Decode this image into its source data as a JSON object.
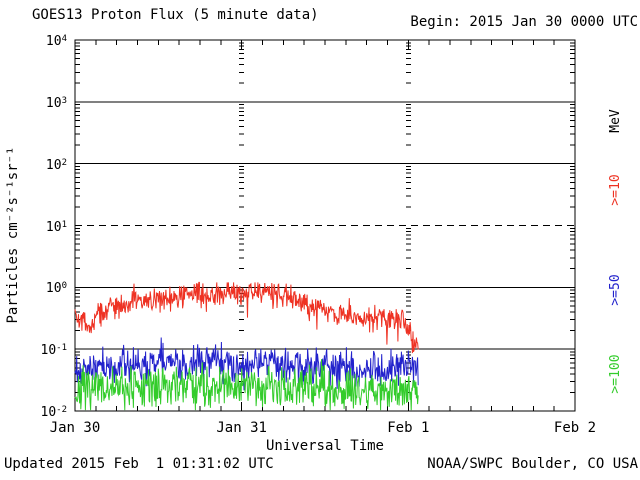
{
  "header": {
    "title": "GOES13 Proton Flux (5 minute data)",
    "begin": "Begin: 2015 Jan 30 0000 UTC"
  },
  "footer": {
    "updated": "Updated 2015 Feb  1 01:31:02 UTC",
    "source": "NOAA/SWPC Boulder, CO USA"
  },
  "right_axis": {
    "unit": "MeV"
  },
  "colors": {
    "axis": "#000000",
    "background": "#ffffff",
    "series_10mev": "#ee3223",
    "series_50mev": "#2222cc",
    "series_100mev": "#33cc2b"
  },
  "chart_data": {
    "type": "line",
    "title": "GOES13 Proton Flux (5 minute data)",
    "xlabel": "Universal Time",
    "ylabel": "Particles cm⁻²s⁻¹sr⁻¹",
    "x_categories": [
      "Jan 30",
      "Jan 31",
      "Feb 1",
      "Feb 2"
    ],
    "x_range_hours": [
      0,
      72
    ],
    "ylog_range_exp": [
      -2,
      4
    ],
    "yticks_exp": [
      4,
      3,
      2,
      1,
      0,
      -1,
      -2
    ],
    "solid_gridlines_exp": [
      3,
      2,
      0,
      -1
    ],
    "dashed_gridline_exp": 1,
    "day_boundary_hours": [
      24,
      48
    ],
    "xtick_step_hours": 3,
    "legend_position": "right",
    "series": [
      {
        "name": ">=10",
        "color": "#ee3223",
        "end_hour": 49.4,
        "jitter_decades": 0.1,
        "spike_prob": 0.02,
        "spike_depth": 0.35,
        "max_log": 0.08,
        "seed": 42,
        "hourly_values": [
          0.35,
          0.3,
          0.22,
          0.33,
          0.4,
          0.45,
          0.5,
          0.48,
          0.55,
          0.6,
          0.55,
          0.62,
          0.65,
          0.7,
          0.62,
          0.68,
          0.72,
          0.78,
          0.8,
          0.72,
          0.78,
          0.82,
          0.85,
          0.8,
          0.85,
          0.82,
          0.88,
          0.85,
          0.8,
          0.76,
          0.8,
          0.72,
          0.62,
          0.55,
          0.5,
          0.46,
          0.42,
          0.38,
          0.36,
          0.4,
          0.35,
          0.31,
          0.34,
          0.3,
          0.32,
          0.3,
          0.28,
          0.3,
          0.2,
          0.11
        ]
      },
      {
        "name": ">=50",
        "color": "#2222cc",
        "end_hour": 49.4,
        "jitter_decades": 0.14,
        "spike_prob": 0.008,
        "spike_depth": 0.2,
        "max_log": -0.65,
        "seed": 1337,
        "hourly_values": [
          0.045,
          0.05,
          0.048,
          0.052,
          0.05,
          0.055,
          0.05,
          0.06,
          0.055,
          0.05,
          0.06,
          0.055,
          0.06,
          0.065,
          0.06,
          0.055,
          0.06,
          0.065,
          0.07,
          0.06,
          0.065,
          0.07,
          0.065,
          0.06,
          0.065,
          0.06,
          0.07,
          0.065,
          0.06,
          0.065,
          0.06,
          0.055,
          0.06,
          0.055,
          0.05,
          0.055,
          0.05,
          0.055,
          0.05,
          0.055,
          0.05,
          0.048,
          0.05,
          0.052,
          0.05,
          0.048,
          0.05,
          0.055,
          0.06,
          0.055
        ]
      },
      {
        "name": ">=100",
        "color": "#33cc2b",
        "end_hour": 49.4,
        "jitter_decades": 0.17,
        "spike_prob": 0.008,
        "spike_depth": 0.2,
        "max_log": -1.0,
        "seed": 7,
        "hourly_values": [
          0.02,
          0.022,
          0.021,
          0.023,
          0.022,
          0.024,
          0.022,
          0.025,
          0.023,
          0.022,
          0.025,
          0.024,
          0.026,
          0.025,
          0.024,
          0.026,
          0.025,
          0.027,
          0.026,
          0.025,
          0.027,
          0.026,
          0.028,
          0.026,
          0.027,
          0.026,
          0.028,
          0.027,
          0.026,
          0.025,
          0.026,
          0.025,
          0.024,
          0.025,
          0.024,
          0.023,
          0.024,
          0.023,
          0.022,
          0.023,
          0.022,
          0.021,
          0.022,
          0.023,
          0.022,
          0.021,
          0.022,
          0.023,
          0.024,
          0.022
        ]
      }
    ]
  }
}
